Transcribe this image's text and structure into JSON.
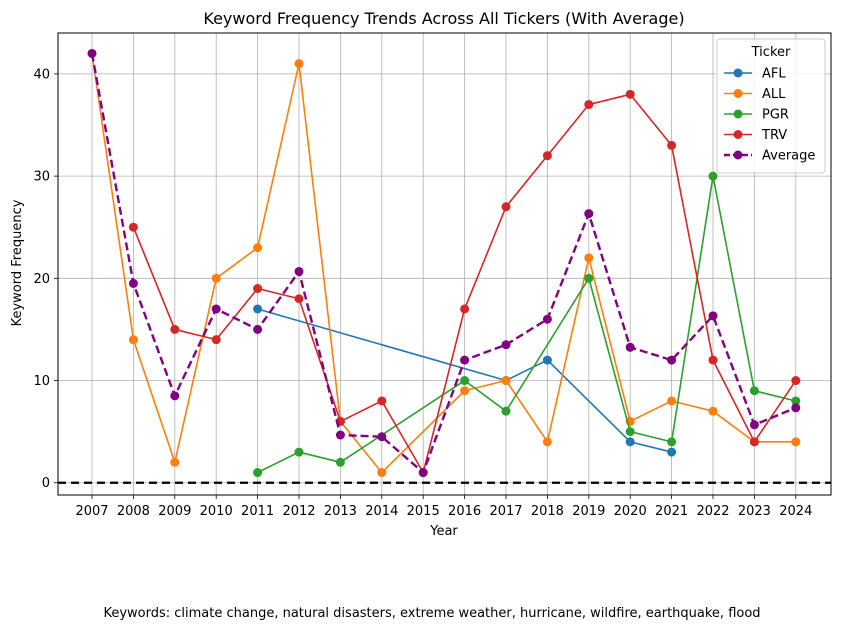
{
  "chart_data": {
    "type": "line",
    "title": "Keyword Frequency Trends Across All Tickers (With Average)",
    "xlabel": "Year",
    "ylabel": "Keyword Frequency",
    "categories": [
      "2007",
      "2008",
      "2009",
      "2010",
      "2011",
      "2012",
      "2013",
      "2014",
      "2015",
      "2016",
      "2017",
      "2018",
      "2019",
      "2020",
      "2021",
      "2022",
      "2023",
      "2024"
    ],
    "ylim": [
      -1.2,
      44
    ],
    "yticks": [
      0,
      10,
      20,
      30,
      40
    ],
    "grid": true,
    "legend_title": "Ticker",
    "legend_position": "top-right",
    "reference_line": {
      "y": 0,
      "style": "dashed",
      "color": "#000000"
    },
    "series": [
      {
        "name": "AFL",
        "color": "#1f77b4",
        "values": [
          null,
          null,
          null,
          null,
          17,
          null,
          null,
          null,
          null,
          null,
          10,
          12,
          null,
          4,
          3,
          null,
          null,
          null
        ]
      },
      {
        "name": "ALL",
        "color": "#ff7f0e",
        "values": [
          42,
          14,
          2,
          20,
          23,
          41,
          6,
          1,
          null,
          9,
          10,
          4,
          22,
          6,
          8,
          7,
          4,
          4
        ]
      },
      {
        "name": "PGR",
        "color": "#2ca02c",
        "values": [
          null,
          null,
          null,
          null,
          1,
          3,
          2,
          null,
          null,
          10,
          7,
          null,
          20,
          5,
          4,
          30,
          9,
          8
        ]
      },
      {
        "name": "TRV",
        "color": "#d62728",
        "values": [
          null,
          25,
          15,
          14,
          19,
          18,
          6,
          8,
          1,
          17,
          27,
          32,
          37,
          38,
          33,
          12,
          4,
          10
        ]
      },
      {
        "name": "Average",
        "color": "#800080",
        "dashed": true,
        "values": [
          42,
          19.5,
          8.5,
          17,
          15,
          20.67,
          4.67,
          4.5,
          1,
          12,
          13.5,
          16,
          26.33,
          13.25,
          12,
          16.33,
          5.67,
          7.33
        ]
      }
    ]
  },
  "caption": "Keywords: climate change, natural disasters, extreme weather, hurricane, wildfire, earthquake, flood"
}
